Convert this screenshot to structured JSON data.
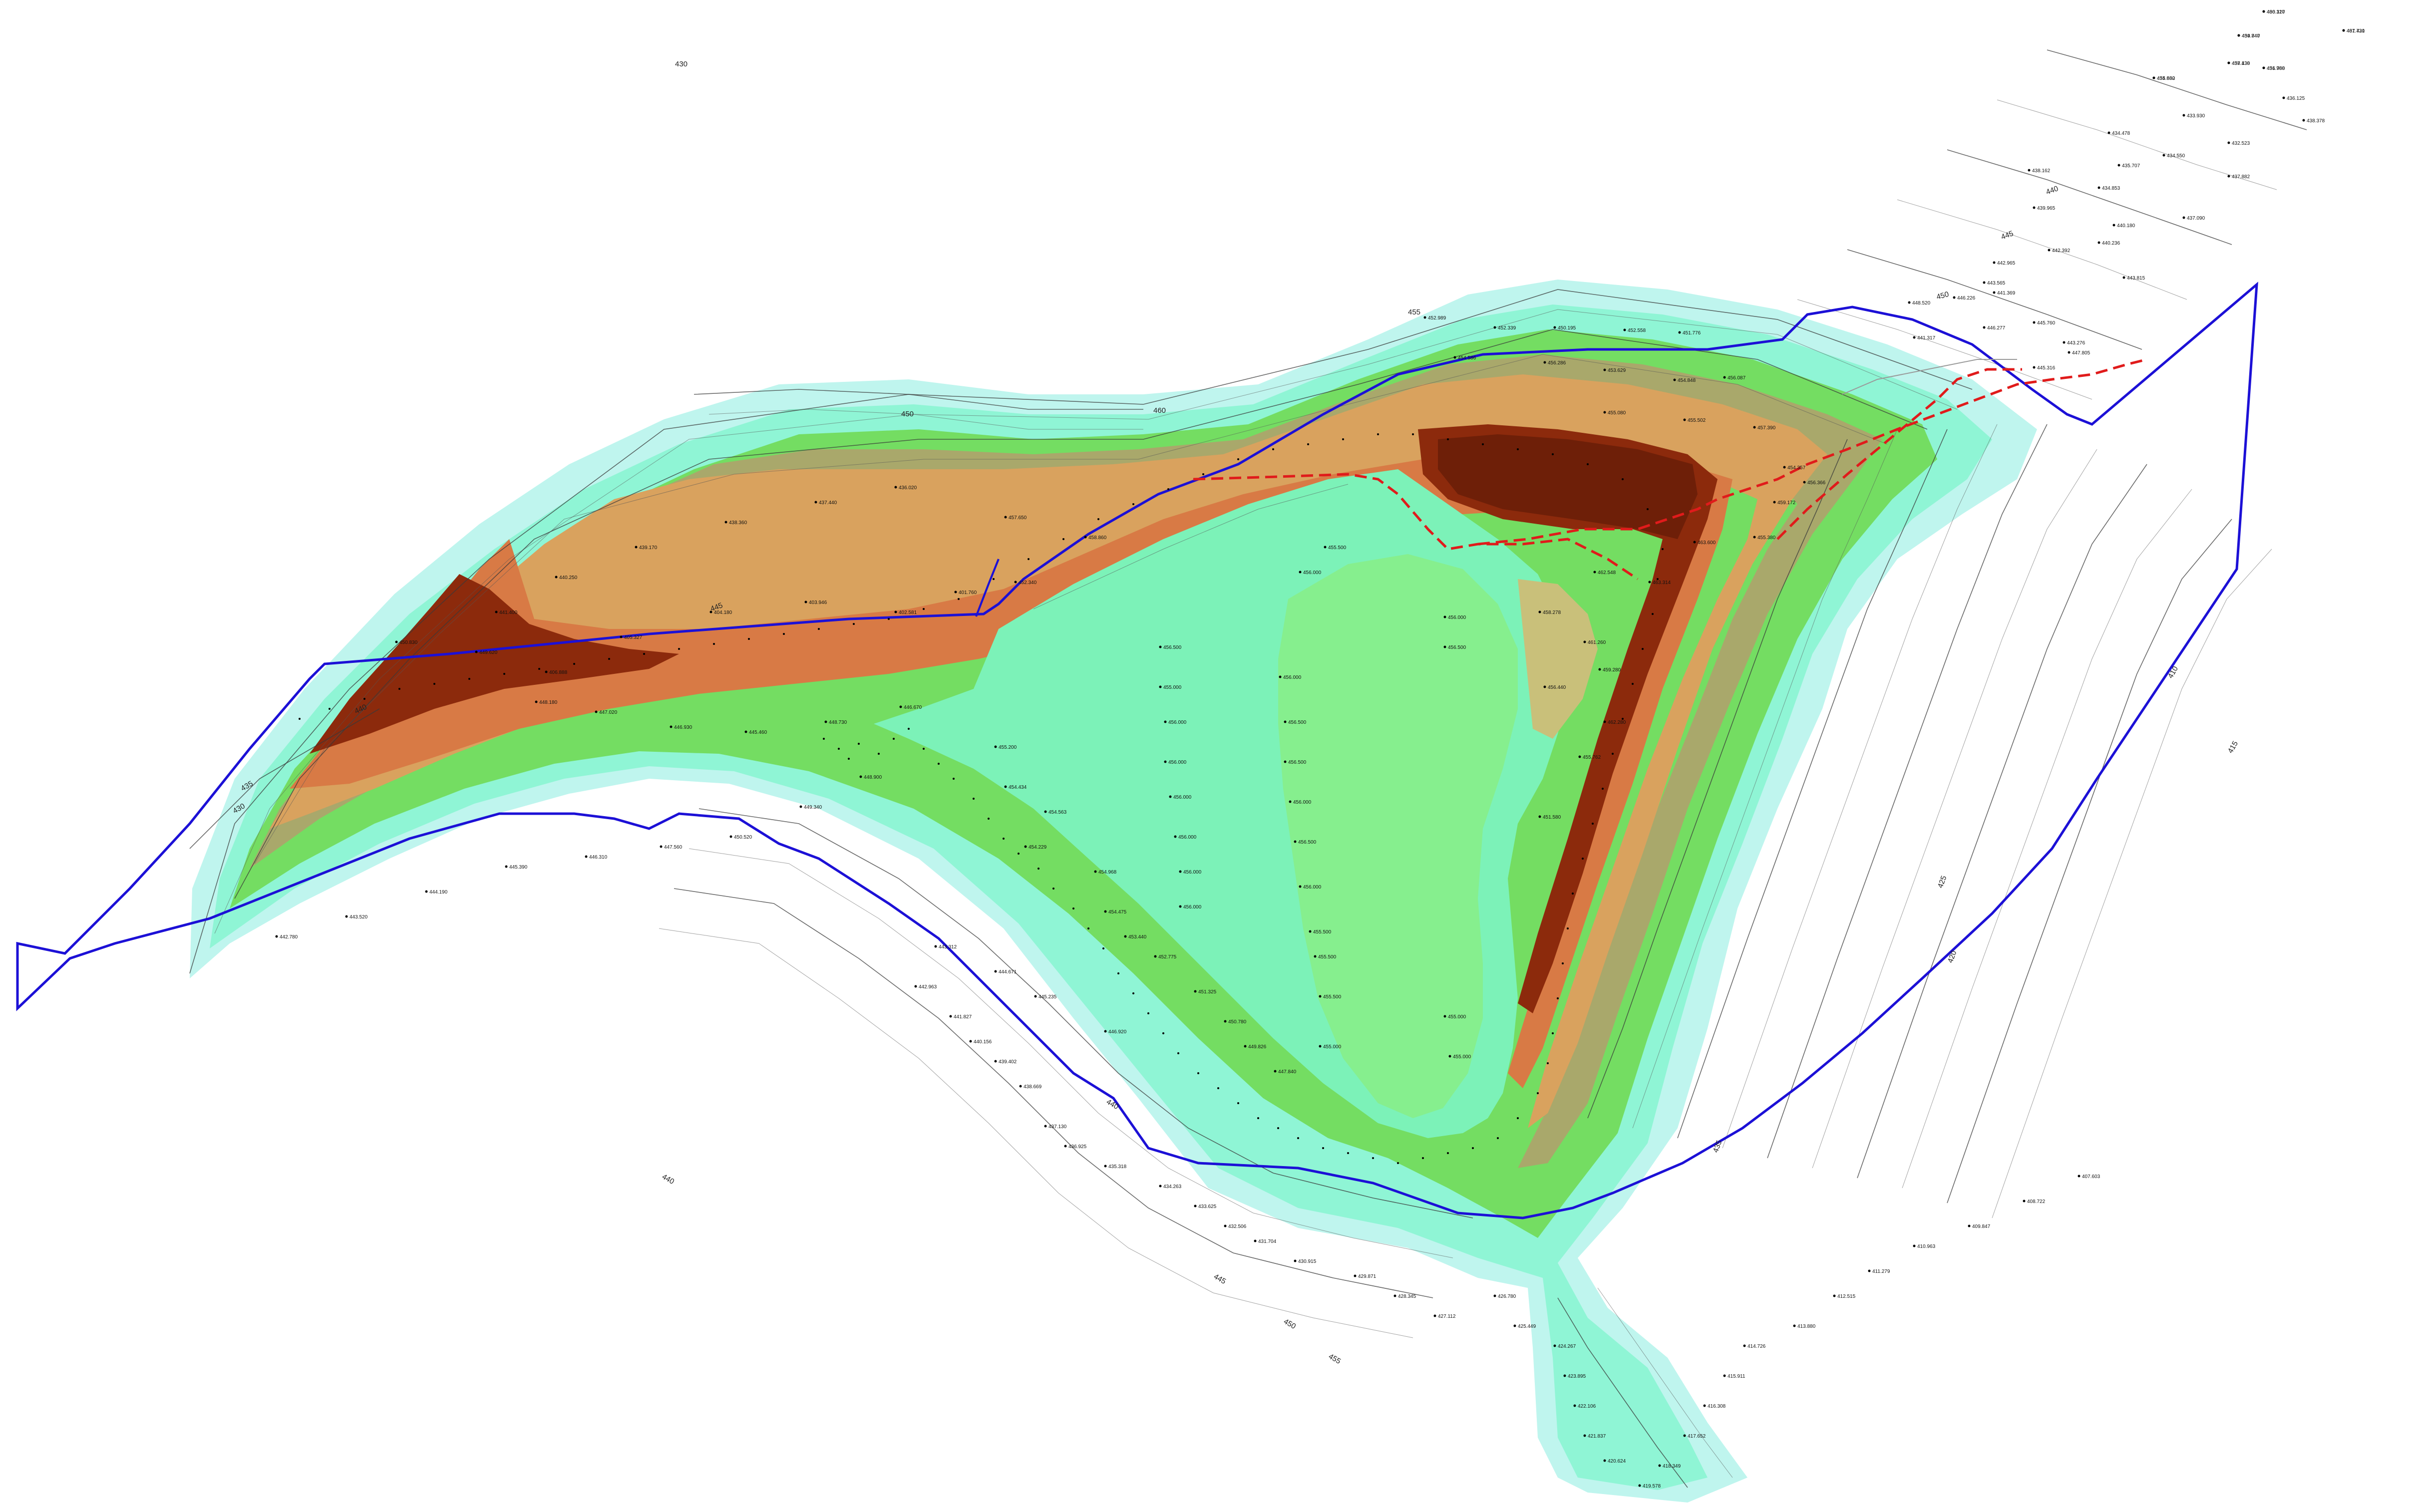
{
  "colors": {
    "boundary": "#1c10d6",
    "proposed_cut": "#e01b1b",
    "thin_road": "#9a9a9a",
    "high_relief": "#8c2a0c",
    "upper_relief": "#c4522a",
    "mid_relief": "#d9a25e",
    "slope_olive": "#a9a86b",
    "slope_green": "#74dd62",
    "low_green": "#8ff0a0",
    "floor": "#8ff5c8",
    "fringe_cyan": "#bff5ee",
    "contour": "#333333"
  },
  "contour_labels": [
    {
      "id": "c-430-a",
      "text": "430"
    },
    {
      "id": "c-440-a",
      "text": "440"
    },
    {
      "id": "c-445-a",
      "text": "445"
    },
    {
      "id": "c-450-a",
      "text": "450"
    },
    {
      "id": "c-455-a",
      "text": "455"
    },
    {
      "id": "c-460-a",
      "text": "460"
    },
    {
      "id": "c-450-b",
      "text": "450"
    },
    {
      "id": "c-445-b",
      "text": "445"
    },
    {
      "id": "c-440-b",
      "text": "440"
    },
    {
      "id": "c-435-a",
      "text": "435"
    },
    {
      "id": "c-430-b",
      "text": "430"
    },
    {
      "id": "c-425-a",
      "text": "425"
    },
    {
      "id": "c-420-a",
      "text": "420"
    },
    {
      "id": "c-410-a",
      "text": "410"
    },
    {
      "id": "c-415-a",
      "text": "415"
    },
    {
      "id": "c-435-b",
      "text": "435"
    },
    {
      "id": "c-440-c",
      "text": "440"
    },
    {
      "id": "c-445-c",
      "text": "445"
    },
    {
      "id": "c-450-c",
      "text": "450"
    },
    {
      "id": "c-455-b",
      "text": "455"
    },
    {
      "id": "c-440-d",
      "text": "440"
    }
  ],
  "spot_heights": [
    {
      "id": "h01",
      "text": "436.127"
    },
    {
      "id": "h02",
      "text": "437.731"
    },
    {
      "id": "h03",
      "text": "434.847"
    },
    {
      "id": "h04",
      "text": "438.438"
    },
    {
      "id": "h05",
      "text": "431.968"
    },
    {
      "id": "h06",
      "text": "434.862"
    },
    {
      "id": "h07",
      "text": "436.125"
    },
    {
      "id": "h08",
      "text": "438.378"
    },
    {
      "id": "h09",
      "text": "433.930"
    },
    {
      "id": "h10",
      "text": "434.478"
    },
    {
      "id": "h11",
      "text": "432.523"
    },
    {
      "id": "h12",
      "text": "434.550"
    },
    {
      "id": "h13",
      "text": "435.707"
    },
    {
      "id": "h14",
      "text": "438.162"
    },
    {
      "id": "h15",
      "text": "437.882"
    },
    {
      "id": "h16",
      "text": "434.853"
    },
    {
      "id": "h17",
      "text": "439.965"
    },
    {
      "id": "h18",
      "text": "440.180"
    },
    {
      "id": "h19",
      "text": "437.090"
    },
    {
      "id": "h20",
      "text": "442.392"
    },
    {
      "id": "h21",
      "text": "442.965"
    },
    {
      "id": "h22",
      "text": "440.236"
    },
    {
      "id": "h23",
      "text": "441.369"
    },
    {
      "id": "h24",
      "text": "443.565"
    },
    {
      "id": "h25",
      "text": "443.815"
    },
    {
      "id": "h26",
      "text": "446.226"
    },
    {
      "id": "h27",
      "text": "448.520"
    },
    {
      "id": "h28",
      "text": "445.760"
    },
    {
      "id": "h29",
      "text": "446.277"
    },
    {
      "id": "h30",
      "text": "443.276"
    },
    {
      "id": "h31",
      "text": "441.317"
    },
    {
      "id": "h32",
      "text": "445.316"
    },
    {
      "id": "h33",
      "text": "447.805"
    },
    {
      "id": "h34",
      "text": "452.989"
    },
    {
      "id": "h35",
      "text": "452.339"
    },
    {
      "id": "h36",
      "text": "450.195"
    },
    {
      "id": "h37",
      "text": "452.558"
    },
    {
      "id": "h38",
      "text": "451.776"
    },
    {
      "id": "h39",
      "text": "454.586"
    },
    {
      "id": "h40",
      "text": "456.286"
    },
    {
      "id": "h41",
      "text": "453.629"
    },
    {
      "id": "h42",
      "text": "454.848"
    },
    {
      "id": "h43",
      "text": "456.087"
    },
    {
      "id": "h44",
      "text": "455.080"
    },
    {
      "id": "h45",
      "text": "455.502"
    },
    {
      "id": "h46",
      "text": "457.390"
    },
    {
      "id": "h47",
      "text": "454.357"
    },
    {
      "id": "h48",
      "text": "456.366"
    },
    {
      "id": "h49",
      "text": "459.172"
    },
    {
      "id": "h50",
      "text": "455.380"
    },
    {
      "id": "h51",
      "text": "462.548"
    },
    {
      "id": "h52",
      "text": "463.314"
    },
    {
      "id": "h53",
      "text": "463.600"
    },
    {
      "id": "h54",
      "text": "458.278"
    },
    {
      "id": "h55",
      "text": "461.260"
    },
    {
      "id": "h56",
      "text": "459.280"
    },
    {
      "id": "h57",
      "text": "456.440"
    },
    {
      "id": "h58",
      "text": "462.280"
    },
    {
      "id": "h59",
      "text": "455.762"
    },
    {
      "id": "h60",
      "text": "451.580"
    },
    {
      "id": "h61",
      "text": "456.000"
    },
    {
      "id": "h62",
      "text": "456.500"
    },
    {
      "id": "h63",
      "text": "455.500"
    },
    {
      "id": "h64",
      "text": "456.000"
    },
    {
      "id": "h65",
      "text": "456.500"
    },
    {
      "id": "h66",
      "text": "455.000"
    },
    {
      "id": "h67",
      "text": "456.000"
    },
    {
      "id": "h68",
      "text": "456.000"
    },
    {
      "id": "h69",
      "text": "456.500"
    },
    {
      "id": "h70",
      "text": "456.500"
    },
    {
      "id": "h71",
      "text": "456.000"
    },
    {
      "id": "h72",
      "text": "456.000"
    },
    {
      "id": "h73",
      "text": "456.000"
    },
    {
      "id": "h74",
      "text": "456.500"
    },
    {
      "id": "h75",
      "text": "456.000"
    },
    {
      "id": "h76",
      "text": "456.000"
    },
    {
      "id": "h77",
      "text": "456.000"
    },
    {
      "id": "h78",
      "text": "456.000"
    },
    {
      "id": "h79",
      "text": "455.500"
    },
    {
      "id": "h80",
      "text": "455.500"
    },
    {
      "id": "h81",
      "text": "455.500"
    },
    {
      "id": "h82",
      "text": "455.000"
    },
    {
      "id": "h83",
      "text": "455.000"
    },
    {
      "id": "h84",
      "text": "455.000"
    },
    {
      "id": "h85",
      "text": "455.200"
    },
    {
      "id": "h86",
      "text": "454.434"
    },
    {
      "id": "h87",
      "text": "454.563"
    },
    {
      "id": "h88",
      "text": "454.229"
    },
    {
      "id": "h89",
      "text": "454.968"
    },
    {
      "id": "h90",
      "text": "454.475"
    },
    {
      "id": "h91",
      "text": "453.440"
    },
    {
      "id": "h92",
      "text": "452.775"
    },
    {
      "id": "h93",
      "text": "451.325"
    },
    {
      "id": "h94",
      "text": "450.780"
    },
    {
      "id": "h95",
      "text": "449.826"
    },
    {
      "id": "h96",
      "text": "447.840"
    },
    {
      "id": "h97",
      "text": "446.920"
    },
    {
      "id": "h98",
      "text": "445.235"
    },
    {
      "id": "h99",
      "text": "444.671"
    },
    {
      "id": "h100",
      "text": "443.312"
    },
    {
      "id": "h101",
      "text": "442.963"
    },
    {
      "id": "h102",
      "text": "441.827"
    },
    {
      "id": "h103",
      "text": "440.156"
    },
    {
      "id": "h104",
      "text": "439.402"
    },
    {
      "id": "h105",
      "text": "438.669"
    },
    {
      "id": "h106",
      "text": "437.130"
    },
    {
      "id": "h107",
      "text": "436.925"
    },
    {
      "id": "h108",
      "text": "435.318"
    },
    {
      "id": "h109",
      "text": "434.263"
    },
    {
      "id": "h110",
      "text": "433.625"
    },
    {
      "id": "h111",
      "text": "432.506"
    },
    {
      "id": "h112",
      "text": "431.704"
    },
    {
      "id": "h113",
      "text": "430.915"
    },
    {
      "id": "h114",
      "text": "429.871"
    },
    {
      "id": "h115",
      "text": "428.345"
    },
    {
      "id": "h116",
      "text": "427.112"
    },
    {
      "id": "h117",
      "text": "426.780"
    },
    {
      "id": "h118",
      "text": "425.449"
    },
    {
      "id": "h119",
      "text": "424.267"
    },
    {
      "id": "h120",
      "text": "423.895"
    },
    {
      "id": "h121",
      "text": "422.106"
    },
    {
      "id": "h122",
      "text": "421.837"
    },
    {
      "id": "h123",
      "text": "420.624"
    },
    {
      "id": "h124",
      "text": "419.578"
    },
    {
      "id": "h125",
      "text": "418.349"
    },
    {
      "id": "h126",
      "text": "417.652"
    },
    {
      "id": "h127",
      "text": "416.308"
    },
    {
      "id": "h128",
      "text": "415.911"
    },
    {
      "id": "h129",
      "text": "414.726"
    },
    {
      "id": "h130",
      "text": "413.880"
    },
    {
      "id": "h131",
      "text": "412.515"
    },
    {
      "id": "h132",
      "text": "411.279"
    },
    {
      "id": "h133",
      "text": "410.963"
    },
    {
      "id": "h134",
      "text": "409.847"
    },
    {
      "id": "h135",
      "text": "408.722"
    },
    {
      "id": "h136",
      "text": "407.603"
    },
    {
      "id": "h137",
      "text": "406.888"
    },
    {
      "id": "h138",
      "text": "405.327"
    },
    {
      "id": "h139",
      "text": "404.180"
    },
    {
      "id": "h140",
      "text": "403.946"
    },
    {
      "id": "h141",
      "text": "402.581"
    },
    {
      "id": "h142",
      "text": "401.760"
    },
    {
      "id": "h143",
      "text": "452.340"
    },
    {
      "id": "h144",
      "text": "450.830"
    },
    {
      "id": "h145",
      "text": "449.620"
    },
    {
      "id": "h146",
      "text": "448.180"
    },
    {
      "id": "h147",
      "text": "447.020"
    },
    {
      "id": "h148",
      "text": "446.930"
    },
    {
      "id": "h149",
      "text": "445.460"
    },
    {
      "id": "h150",
      "text": "448.730"
    },
    {
      "id": "h151",
      "text": "446.670"
    },
    {
      "id": "h152",
      "text": "448.900"
    },
    {
      "id": "h153",
      "text": "449.340"
    },
    {
      "id": "h154",
      "text": "450.520"
    },
    {
      "id": "h155",
      "text": "447.560"
    },
    {
      "id": "h156",
      "text": "446.310"
    },
    {
      "id": "h157",
      "text": "445.390"
    },
    {
      "id": "h158",
      "text": "444.190"
    },
    {
      "id": "h159",
      "text": "443.520"
    },
    {
      "id": "h160",
      "text": "442.780"
    },
    {
      "id": "h161",
      "text": "441.400"
    },
    {
      "id": "h162",
      "text": "440.250"
    },
    {
      "id": "h163",
      "text": "439.170"
    },
    {
      "id": "h164",
      "text": "438.360"
    },
    {
      "id": "h165",
      "text": "437.440"
    },
    {
      "id": "h166",
      "text": "436.020"
    },
    {
      "id": "h167",
      "text": "457.650"
    },
    {
      "id": "h168",
      "text": "458.860"
    },
    {
      "id": "h169",
      "text": "460.310"
    },
    {
      "id": "h170",
      "text": "461.420"
    },
    {
      "id": "h171",
      "text": "459.740"
    },
    {
      "id": "h172",
      "text": "457.130"
    },
    {
      "id": "h173",
      "text": "456.780"
    },
    {
      "id": "h174",
      "text": "455.630"
    }
  ]
}
